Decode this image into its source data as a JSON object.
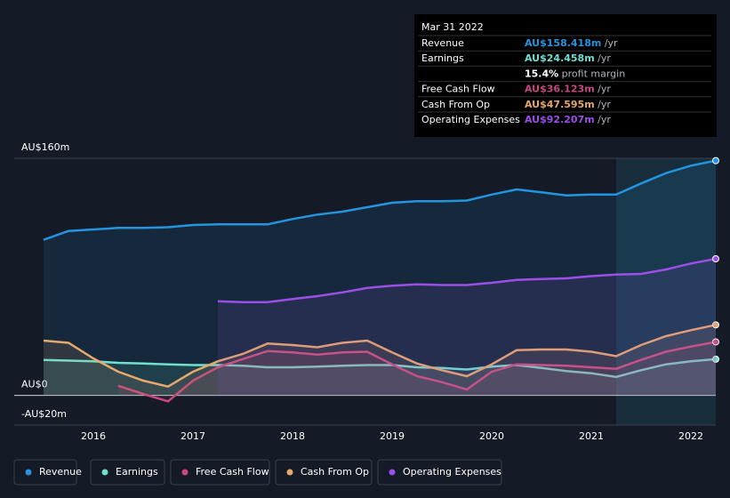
{
  "chart_data": {
    "type": "line",
    "x": [
      2015.5,
      2015.75,
      2016,
      2016.25,
      2016.5,
      2016.75,
      2017,
      2017.25,
      2017.5,
      2017.75,
      2018,
      2018.25,
      2018.5,
      2018.75,
      2019,
      2019.25,
      2019.5,
      2019.75,
      2020,
      2020.25,
      2020.5,
      2020.75,
      2021,
      2021.25,
      2021.5,
      2021.75,
      2022,
      2022.25
    ],
    "series": [
      {
        "name": "Revenue",
        "color": "#2394df",
        "values": [
          105,
          111,
          112,
          113,
          113,
          113.5,
          115,
          115.5,
          115.5,
          115.5,
          119,
          122,
          124,
          127,
          130,
          131,
          131,
          131.5,
          135.5,
          139,
          137,
          135,
          135.5,
          135.5,
          143,
          150,
          155,
          158.418
        ]
      },
      {
        "name": "Earnings",
        "color": "#6fe0cf",
        "values": [
          24,
          23.5,
          23,
          22,
          21.5,
          21,
          20.5,
          20.5,
          20,
          19,
          19,
          19.5,
          20,
          20.5,
          20.5,
          19,
          18.5,
          17.5,
          19.5,
          20.5,
          18.5,
          16.5,
          15,
          12.5,
          17,
          21,
          23,
          24.458
        ]
      },
      {
        "name": "Free Cash Flow",
        "color": "#c8477e",
        "values": [
          null,
          null,
          null,
          6.5,
          1,
          -4,
          10,
          19,
          24.5,
          30,
          29,
          27.5,
          29,
          29.5,
          21,
          13,
          9,
          4,
          16,
          21,
          20.5,
          20,
          19,
          18,
          24,
          29.5,
          33,
          36.123
        ]
      },
      {
        "name": "Cash From Op",
        "color": "#e6a86b",
        "values": [
          37,
          35.5,
          25,
          16,
          10,
          6,
          16,
          23,
          28,
          35,
          34,
          32.5,
          35.5,
          37,
          29,
          21.5,
          17,
          13,
          21,
          30.5,
          31,
          31,
          29.5,
          26.5,
          34,
          40,
          44,
          47.595
        ]
      },
      {
        "name": "Operating Expenses",
        "color": "#9b4fe8",
        "values": [
          null,
          null,
          null,
          null,
          null,
          null,
          null,
          63.5,
          63,
          63,
          65,
          67,
          69.5,
          72.5,
          74,
          75,
          74.5,
          74.5,
          76,
          78,
          78.5,
          79,
          80.5,
          81.5,
          82,
          85,
          89,
          92.207
        ]
      }
    ],
    "xlim": [
      2015.205,
      2022.25
    ],
    "xticks": [
      2016,
      2017,
      2018,
      2019,
      2020,
      2021,
      2022
    ],
    "ylim": [
      -20,
      160
    ],
    "yticks": [
      {
        "value": -20,
        "label": "-AU$20m"
      },
      {
        "value": 0,
        "label": "AU$0"
      },
      {
        "value": 160,
        "label": "AU$160m"
      }
    ],
    "tooltip": {
      "date": "Mar 31 2022",
      "rows": [
        {
          "label": "Revenue",
          "value": "AU$158.418m",
          "unit": "/yr"
        },
        {
          "label": "Earnings",
          "value": "AU$24.458m",
          "unit": "/yr"
        },
        {
          "label": "",
          "value": "15.4%",
          "unit": "profit margin"
        },
        {
          "label": "Free Cash Flow",
          "value": "AU$36.123m",
          "unit": "/yr"
        },
        {
          "label": "Cash From Op",
          "value": "AU$47.595m",
          "unit": "/yr"
        },
        {
          "label": "Operating Expenses",
          "value": "AU$92.207m",
          "unit": "/yr"
        }
      ]
    }
  }
}
